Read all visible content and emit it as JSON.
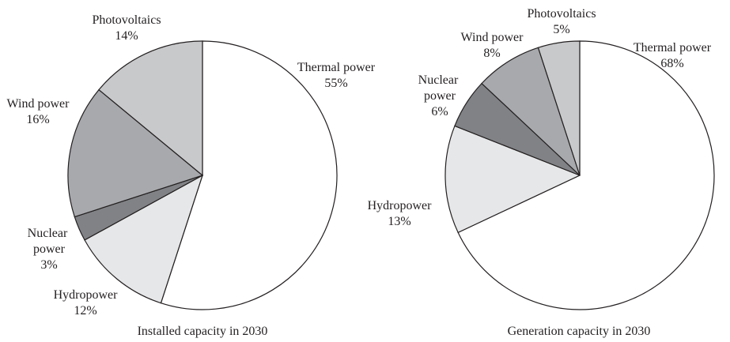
{
  "chart_data": [
    {
      "type": "pie",
      "title": "Installed capacity in 2030",
      "categories": [
        "Thermal power",
        "Hydropower",
        "Nuclear power",
        "Wind power",
        "Photovoltaics"
      ],
      "values": [
        55,
        12,
        3,
        16,
        14
      ],
      "value_labels": [
        "55%",
        "12%",
        "3%",
        "16%",
        "14%"
      ],
      "colors": [
        "#ffffff",
        "#e6e7e8",
        "#808285",
        "#a7a9ac",
        "#c8c9cb"
      ]
    },
    {
      "type": "pie",
      "title": "Generation capacity in 2030",
      "categories": [
        "Thermal power",
        "Hydropower",
        "Nuclear power",
        "Wind power",
        "Photovoltaics"
      ],
      "values": [
        68,
        13,
        6,
        8,
        5
      ],
      "value_labels": [
        "68%",
        "13%",
        "6%",
        "8%",
        "5%"
      ],
      "colors": [
        "#ffffff",
        "#e6e7e8",
        "#808285",
        "#a7a9ac",
        "#c8c9cb"
      ]
    }
  ]
}
